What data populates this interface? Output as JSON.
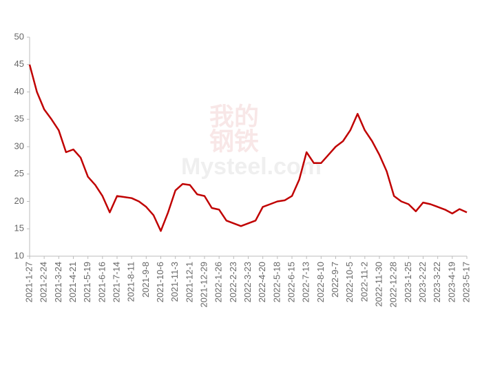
{
  "chart_data": {
    "type": "line",
    "watermark": [
      "我的",
      "钢铁",
      "Mysteel.com"
    ],
    "categories": [
      "2021-1-27",
      null,
      "2021-2-24",
      null,
      "2021-3-24",
      null,
      "2021-4-21",
      null,
      "2021-5-19",
      null,
      "2021-6-16",
      null,
      "2021-7-14",
      null,
      "2021-8-11",
      null,
      "2021-9-8",
      null,
      "2021-10-6",
      null,
      "2021-11-3",
      null,
      "2021-12-1",
      null,
      "2021-12-29",
      null,
      "2022-1-26",
      null,
      "2022-2-23",
      null,
      "2022-3-23",
      null,
      "2022-4-20",
      null,
      "2022-5-18",
      null,
      "2022-6-15",
      null,
      "2022-7-13",
      null,
      "2022-8-10",
      null,
      "2022-9-7",
      null,
      "2022-10-5",
      null,
      "2022-11-2",
      null,
      "2022-11-30",
      null,
      "2022-12-28",
      null,
      "2023-1-25",
      null,
      "2023-2-22",
      null,
      "2023-3-22",
      null,
      "2023-4-19",
      null,
      "2023-5-17"
    ],
    "values": [
      45,
      40,
      36.8,
      35,
      33,
      29,
      29.5,
      28,
      24.5,
      23,
      21,
      18,
      21,
      20.8,
      20.6,
      20,
      19,
      17.5,
      14.6,
      18,
      22,
      23.2,
      23,
      21.3,
      21,
      18.8,
      18.5,
      16.5,
      16,
      15.5,
      16,
      16.5,
      19,
      19.5,
      20,
      20.2,
      21,
      24,
      29,
      27,
      27,
      28.5,
      30,
      31,
      33,
      36,
      33,
      31,
      28.5,
      25.5,
      21,
      20,
      19.5,
      18.2,
      19.8,
      19.5,
      19,
      18.5,
      17.8,
      18.6,
      18
    ],
    "color": "#c00000",
    "ylim": [
      10,
      50
    ],
    "yticks": [
      10,
      15,
      20,
      25,
      30,
      35,
      40,
      45,
      50
    ]
  }
}
